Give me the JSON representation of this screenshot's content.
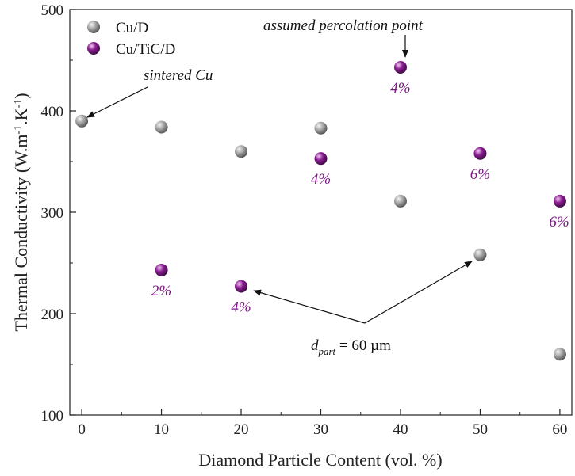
{
  "chart_data": {
    "type": "scatter",
    "xlabel": "Diamond Particle Content (vol. %)",
    "ylabel": "Thermal Conductivity (W.m-1.K-1)",
    "ylabel_parts": {
      "pre": "Thermal Conductivity (W.m",
      "sup1": "-1",
      "mid": ".K",
      "sup2": "-1",
      "post": ")"
    },
    "xlim": [
      -1.5,
      61.5
    ],
    "ylim": [
      100,
      500
    ],
    "xticks": [
      0,
      10,
      20,
      30,
      40,
      50,
      60
    ],
    "yticks": [
      100,
      200,
      300,
      400,
      500
    ],
    "grid": false,
    "legend_position": "top-left",
    "series": [
      {
        "name": "Cu/D",
        "color": "#8a8a8a",
        "points": [
          {
            "x": 0,
            "y": 390
          },
          {
            "x": 10,
            "y": 384
          },
          {
            "x": 20,
            "y": 360
          },
          {
            "x": 30,
            "y": 383
          },
          {
            "x": 40,
            "y": 311
          },
          {
            "x": 50,
            "y": 258
          },
          {
            "x": 60,
            "y": 160
          }
        ]
      },
      {
        "name": "Cu/TiC/D",
        "color": "#7b1682",
        "points": [
          {
            "x": 10,
            "y": 243,
            "label": "2%"
          },
          {
            "x": 20,
            "y": 227,
            "label": "4%"
          },
          {
            "x": 30,
            "y": 353,
            "label": "4%"
          },
          {
            "x": 40,
            "y": 443,
            "label": "4%"
          },
          {
            "x": 50,
            "y": 358,
            "label": "6%"
          },
          {
            "x": 60,
            "y": 311,
            "label": "6%"
          }
        ]
      }
    ],
    "annotations": {
      "sintered": "sintered Cu",
      "percolation": "assumed percolation point",
      "dpart_main": "d",
      "dpart_sub": "part",
      "dpart_rest": " = 60 µm"
    }
  }
}
